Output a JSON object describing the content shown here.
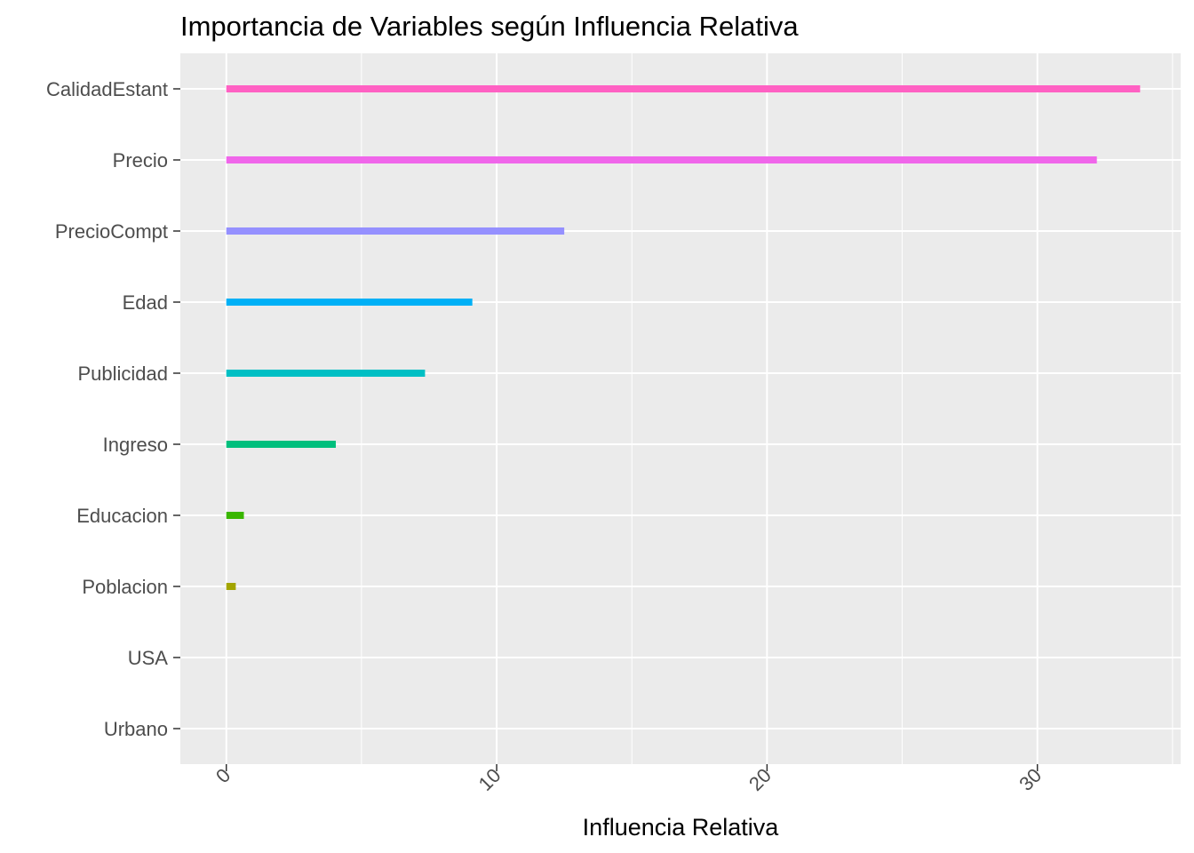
{
  "chart_data": {
    "type": "bar",
    "orientation": "horizontal",
    "title": "Importancia de Variables según Influencia Relativa",
    "xlabel": "Influencia Relativa",
    "ylabel": "",
    "categories": [
      "CalidadEstant",
      "Precio",
      "PrecioCompt",
      "Edad",
      "Publicidad",
      "Ingreso",
      "Educacion",
      "Poblacion",
      "USA",
      "Urbano"
    ],
    "values": [
      33.8,
      32.2,
      12.5,
      9.1,
      7.35,
      4.05,
      0.65,
      0.35,
      0.0,
      0.0
    ],
    "colors": [
      "#FF61C3",
      "#F066EA",
      "#9590FF",
      "#00B0F6",
      "#00BFC4",
      "#00BF7D",
      "#39B600",
      "#A3A500",
      "#D89000",
      "#F8766D"
    ],
    "xlim": [
      -1.7,
      35.3
    ],
    "xticks": [
      0,
      10,
      20,
      30
    ],
    "xtick_labels": [
      "0",
      "10",
      "20",
      "30"
    ],
    "grid": true,
    "legend": "none",
    "panel_background": "#EBEBEB"
  }
}
